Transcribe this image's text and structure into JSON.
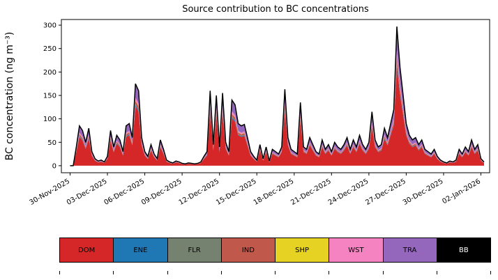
{
  "chart_data": {
    "type": "area",
    "stacked": true,
    "title": "Source contribution to BC concentrations",
    "ylabel": "BC concentration (ng m⁻³)",
    "xlabel": "",
    "grid": false,
    "legend_position": "bottom",
    "x_start": "30-Nov-2025 00:00",
    "x_step_hours": 6,
    "x_tick_labels": [
      "30-Nov-2025",
      "03-Dec-2025",
      "06-Dec-2025",
      "09-Dec-2025",
      "12-Dec-2025",
      "15-Dec-2025",
      "18-Dec-2025",
      "21-Dec-2025",
      "24-Dec-2025",
      "27-Dec-2025",
      "30-Dec-2025",
      "02-Jan-2026"
    ],
    "x_tick_days": [
      0,
      3,
      6,
      9,
      12,
      15,
      18,
      21,
      24,
      27,
      30,
      33
    ],
    "y_ticks": [
      0,
      50,
      100,
      150,
      200,
      250,
      300
    ],
    "ylim": [
      -15,
      312
    ],
    "xlim_days": [
      -0.7,
      33.7
    ],
    "outline_color": "#000000",
    "total": [
      0,
      0,
      40,
      85,
      75,
      50,
      80,
      30,
      15,
      10,
      12,
      8,
      20,
      75,
      40,
      65,
      55,
      30,
      85,
      90,
      60,
      175,
      160,
      60,
      30,
      20,
      45,
      25,
      15,
      55,
      35,
      12,
      8,
      6,
      10,
      8,
      5,
      4,
      6,
      5,
      4,
      5,
      8,
      20,
      30,
      160,
      45,
      150,
      40,
      155,
      50,
      30,
      140,
      130,
      90,
      85,
      88,
      60,
      30,
      20,
      12,
      45,
      15,
      40,
      10,
      35,
      30,
      25,
      40,
      163,
      60,
      35,
      30,
      25,
      135,
      40,
      35,
      60,
      45,
      30,
      25,
      55,
      35,
      45,
      30,
      50,
      40,
      35,
      45,
      60,
      35,
      55,
      40,
      65,
      45,
      35,
      50,
      115,
      55,
      40,
      45,
      80,
      60,
      90,
      120,
      297,
      210,
      150,
      90,
      65,
      55,
      60,
      45,
      55,
      35,
      30,
      25,
      35,
      20,
      12,
      8,
      6,
      10,
      8,
      12,
      35,
      25,
      40,
      30,
      55,
      35,
      45,
      15,
      8
    ],
    "series": [
      {
        "name": "DOM",
        "color": "#d62728",
        "label_color": "#000000",
        "fraction": 0.72
      },
      {
        "name": "ENE",
        "color": "#1f77b4",
        "label_color": "#000000",
        "fraction": 0.02
      },
      {
        "name": "FLR",
        "color": "#75826f",
        "label_color": "#000000",
        "fraction": 0.01
      },
      {
        "name": "IND",
        "color": "#c0584c",
        "label_color": "#000000",
        "fraction": 0.04
      },
      {
        "name": "SHP",
        "color": "#e6d222",
        "label_color": "#000000",
        "fraction": 0.005
      },
      {
        "name": "WST",
        "color": "#f583c1",
        "label_color": "#000000",
        "fraction": 0.035
      },
      {
        "name": "TRA",
        "color": "#9467bd",
        "label_color": "#000000",
        "fraction": 0.16
      },
      {
        "name": "BB",
        "color": "#000000",
        "label_color": "#ffffff",
        "fraction": 0.01
      }
    ]
  }
}
